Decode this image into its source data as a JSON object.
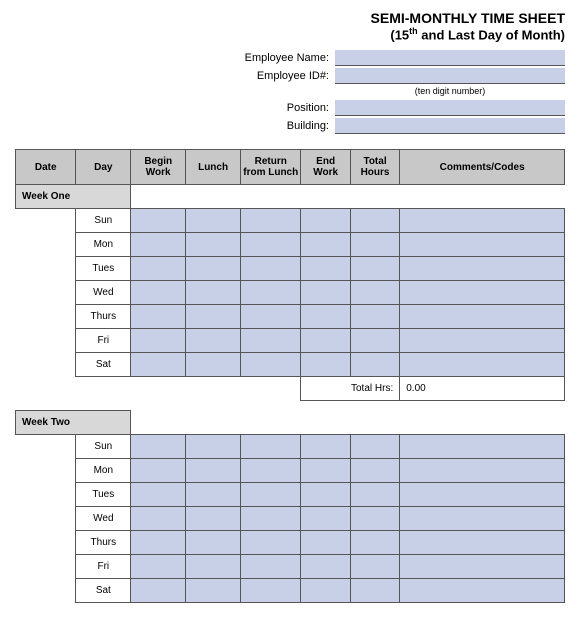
{
  "title": {
    "main": "SEMI-MONTHLY TIME SHEET",
    "sub_prefix": "(15",
    "sub_sup": "th",
    "sub_suffix": " and Last Day of Month)"
  },
  "form": {
    "employee_name_label": "Employee Name:",
    "employee_id_label": "Employee ID#:",
    "id_note": "(ten digit number)",
    "position_label": "Position:",
    "building_label": "Building:"
  },
  "headers": {
    "date": "Date",
    "day": "Day",
    "begin": "Begin Work",
    "lunch": "Lunch",
    "return": "Return from Lunch",
    "end": "End Work",
    "total": "Total Hours",
    "comments": "Comments/Codes"
  },
  "week_one": {
    "label": "Week One",
    "days": [
      "Sun",
      "Mon",
      "Tues",
      "Wed",
      "Thurs",
      "Fri",
      "Sat"
    ],
    "total_label": "Total Hrs:",
    "total_value": "0.00"
  },
  "week_two": {
    "label": "Week Two",
    "days": [
      "Sun",
      "Mon",
      "Tues",
      "Wed",
      "Thurs",
      "Fri",
      "Sat"
    ]
  },
  "colors": {
    "fill": "#c8d0e8",
    "header": "#c8c8c8",
    "section": "#d8d8d8",
    "border": "#555555",
    "background": "#ffffff"
  }
}
